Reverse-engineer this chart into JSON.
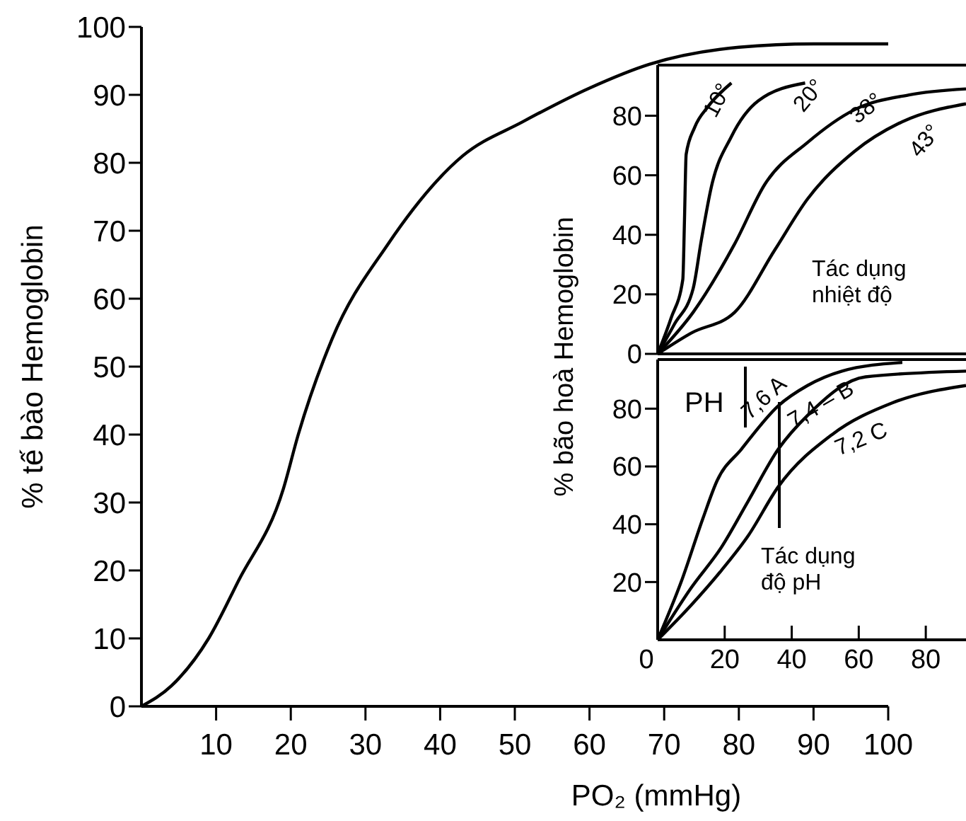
{
  "chart_data": [
    {
      "type": "line",
      "xlabel": "PO₂ (mmHg)",
      "ylabel": "% tế bào Hemoglobin",
      "xlim": [
        0,
        100
      ],
      "ylim": [
        0,
        100
      ],
      "xticks": [
        10,
        20,
        30,
        40,
        50,
        60,
        70,
        80,
        90,
        100
      ],
      "yticks": [
        0,
        10,
        20,
        30,
        40,
        50,
        60,
        70,
        80,
        90,
        100
      ],
      "marker": "none",
      "grid": false,
      "legend": false,
      "series": [
        {
          "color": "#000000",
          "x": [
            0,
            4,
            9,
            13,
            19,
            21,
            25.5,
            33,
            43,
            51,
            60,
            68,
            80,
            90,
            100
          ],
          "values": [
            0,
            3,
            10,
            18.5,
            32,
            40,
            54,
            68,
            81,
            86,
            91,
            94.5,
            97,
            97.5,
            97.5
          ]
        }
      ]
    },
    {
      "type": "line",
      "ylabel": "% bão hoà Hemoglobin",
      "xlim": [
        0,
        92
      ],
      "ylim": [
        0,
        97
      ],
      "yticks": [
        0,
        20,
        40,
        60,
        80
      ],
      "tick_labels": "y",
      "marker": "none",
      "grid": false,
      "legend": false,
      "annotations": [
        "Tác dụng\nnhiệt độ"
      ],
      "series": [
        {
          "name": "10°",
          "color": "#000000",
          "x": [
            0,
            4,
            7.5,
            8,
            8.5,
            11,
            15,
            22
          ],
          "values": [
            0,
            12,
            25,
            45,
            67,
            76,
            83,
            91
          ]
        },
        {
          "name": "20°",
          "color": "#000000",
          "x": [
            0,
            5,
            10.6,
            13,
            16,
            22,
            30,
            44
          ],
          "values": [
            0,
            10,
            22,
            38,
            56,
            73,
            85,
            91
          ]
        },
        {
          "name": "38°",
          "color": "#000000",
          "x": [
            0,
            10.6,
            23,
            32,
            44.7,
            58.7,
            75,
            92
          ],
          "values": [
            0,
            14,
            37,
            57,
            71,
            82,
            87,
            89
          ]
        },
        {
          "name": "43°",
          "color": "#000000",
          "x": [
            0,
            10,
            23,
            35,
            44.7,
            58.7,
            73,
            92
          ],
          "values": [
            0,
            7,
            14,
            35,
            52,
            68,
            78,
            84
          ]
        }
      ]
    },
    {
      "type": "line",
      "xlim": [
        0,
        92
      ],
      "ylim": [
        0,
        97
      ],
      "xticks": [
        0,
        20,
        40,
        60,
        80
      ],
      "yticks": [
        20,
        40,
        60,
        80
      ],
      "marker": "none",
      "grid": false,
      "legend": false,
      "annotations": [
        "PH",
        "Tác dụng\nđộ pH"
      ],
      "series": [
        {
          "name": "7,6 A",
          "color": "#000000",
          "x": [
            0,
            7,
            13.5,
            17.7,
            25,
            36,
            44.7,
            55,
            73
          ],
          "values": [
            0,
            20,
            42,
            55,
            66,
            81,
            88,
            93,
            96
          ]
        },
        {
          "name": "7,4 – B",
          "color": "#000000",
          "x": [
            0,
            10,
            19,
            27,
            36,
            45,
            62,
            92
          ],
          "values": [
            0,
            18,
            32,
            48,
            66,
            78,
            91,
            93
          ]
        },
        {
          "name": "7,2 C",
          "color": "#000000",
          "x": [
            0,
            10,
            19,
            27,
            36,
            52,
            70,
            92
          ],
          "values": [
            0,
            12,
            24,
            36,
            53,
            71,
            82,
            88
          ]
        }
      ]
    }
  ]
}
